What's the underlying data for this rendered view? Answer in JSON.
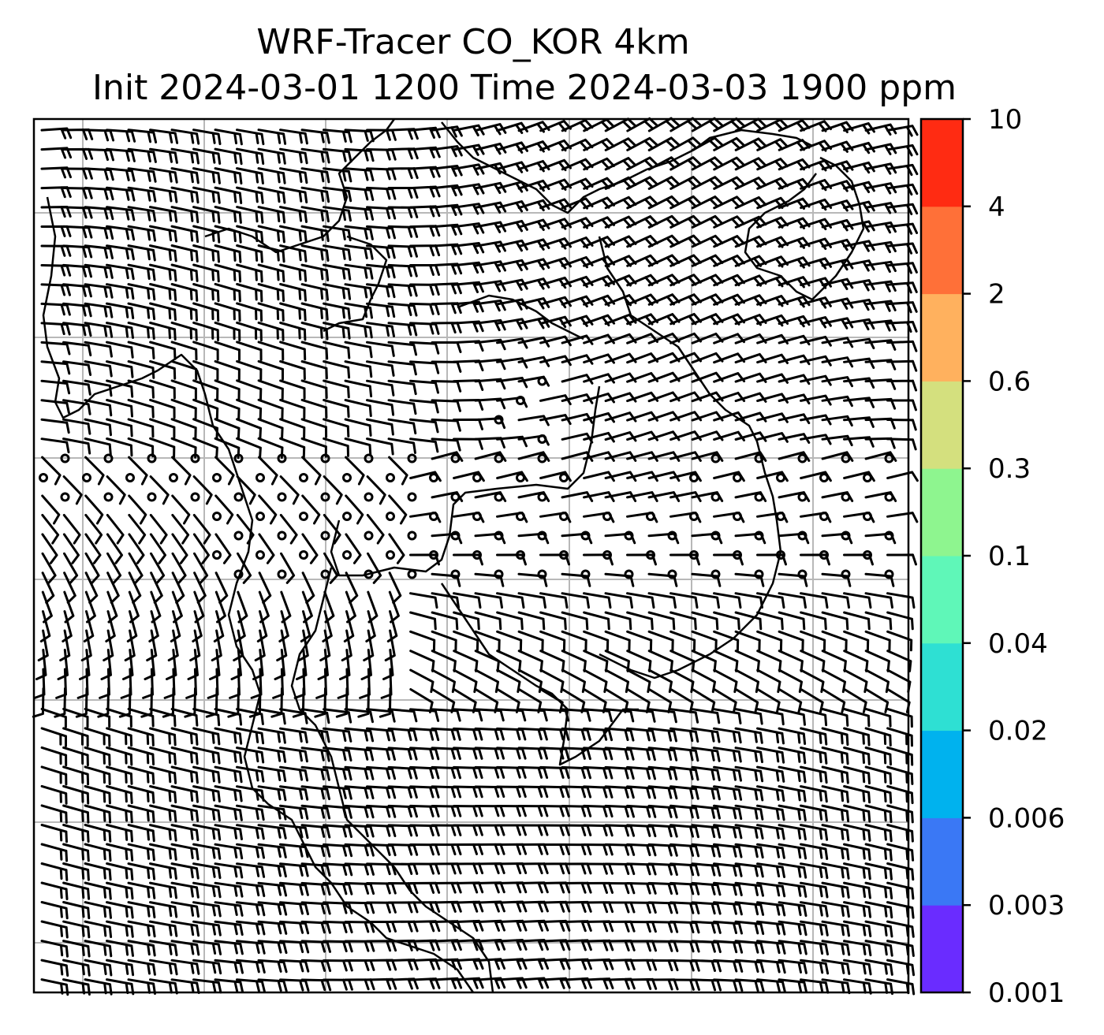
{
  "title_line1": "WRF-Tracer CO_KOR 4km",
  "title_line2": "Init 2024-03-01 1200 Time 2024-03-03 1900 ppm",
  "colorbar": {
    "levels": [
      "0.001",
      "0.003",
      "0.006",
      "0.02",
      "0.04",
      "0.1",
      "0.3",
      "0.6",
      "2",
      "4",
      "10"
    ],
    "colors": [
      "#6a2cff",
      "#3a78f5",
      "#00b2ee",
      "#2ee0d3",
      "#5ff7b8",
      "#8ef58f",
      "#d4e07e",
      "#ffb15e",
      "#ff7038",
      "#ff2b12"
    ]
  },
  "map": {
    "gridlines": true,
    "coastline_color": "#000000",
    "grid_color": "#b8b8b8",
    "wind_barbs": true,
    "calm_region": "central band (circles indicate calm winds)"
  }
}
